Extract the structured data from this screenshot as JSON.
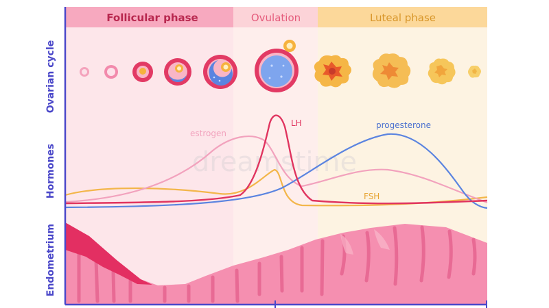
{
  "phases": {
    "follicular": "Follicular phase",
    "ovulation": "Ovulation",
    "luteal": "Luteal phase"
  },
  "side_labels": {
    "ovarian": "Ovarian cycle",
    "hormones": "Hormones",
    "endometrium": "Endometrium"
  },
  "hormones": {
    "estrogen": "estrogen",
    "lh": "LH",
    "progesterone": "progesterone",
    "fsh": "FSH"
  },
  "watermark": "dreamstime",
  "colors": {
    "follicular_band": "#f7a9bf",
    "ovulation_band": "#fcd3d8",
    "luteal_band": "#fcd89a",
    "estrogen": "#f2a2bd",
    "lh": "#e0345f",
    "progesterone": "#5b84e0",
    "fsh": "#f3b64a",
    "axis": "#4a47c9",
    "endometrium": "#f58fb0"
  }
}
